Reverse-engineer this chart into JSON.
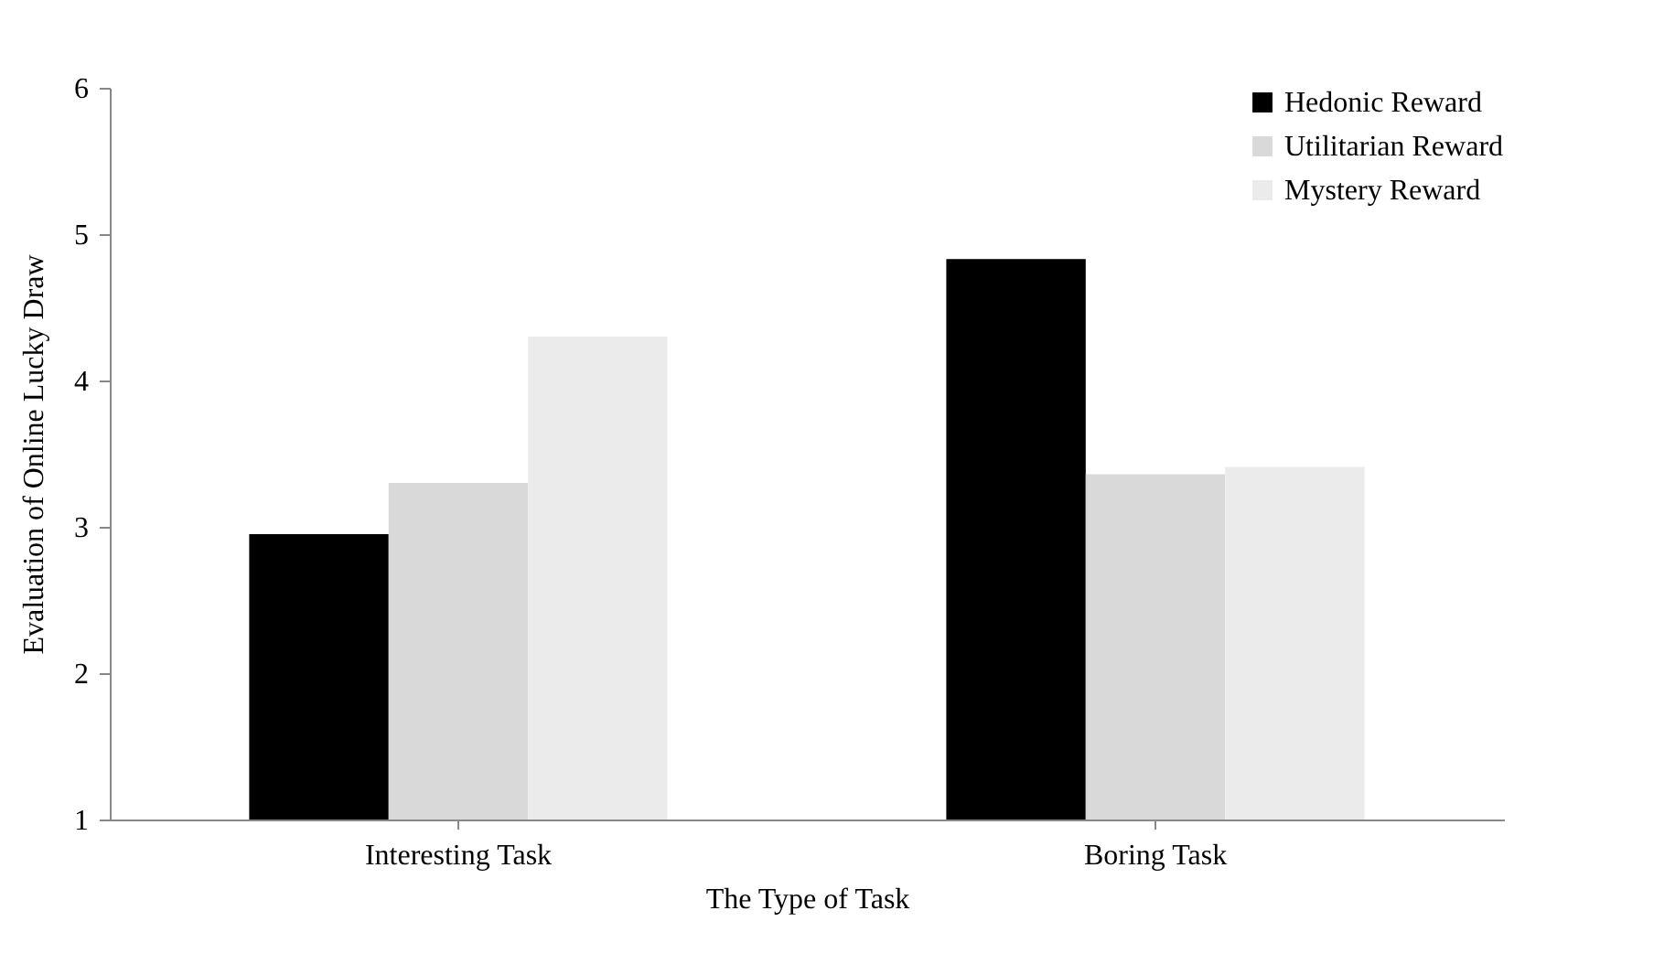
{
  "chart_data": {
    "type": "bar",
    "xlabel": "The Type of Task",
    "ylabel": "Evaluation of Online Lucky Draw",
    "categories": [
      "Interesting Task",
      "Boring Task"
    ],
    "series": [
      {
        "name": "Hedonic Reward",
        "color": "#000000",
        "values": [
          2.95,
          4.83
        ]
      },
      {
        "name": "Utilitarian Reward",
        "color": "#d9d9d9",
        "values": [
          3.3,
          3.36
        ]
      },
      {
        "name": "Mystery Reward",
        "color": "#ebebeb",
        "values": [
          4.3,
          3.41
        ]
      }
    ],
    "ylim": [
      1,
      6
    ],
    "yticks": [
      1,
      2,
      3,
      4,
      5,
      6
    ],
    "grid": false,
    "legend": "top right"
  }
}
